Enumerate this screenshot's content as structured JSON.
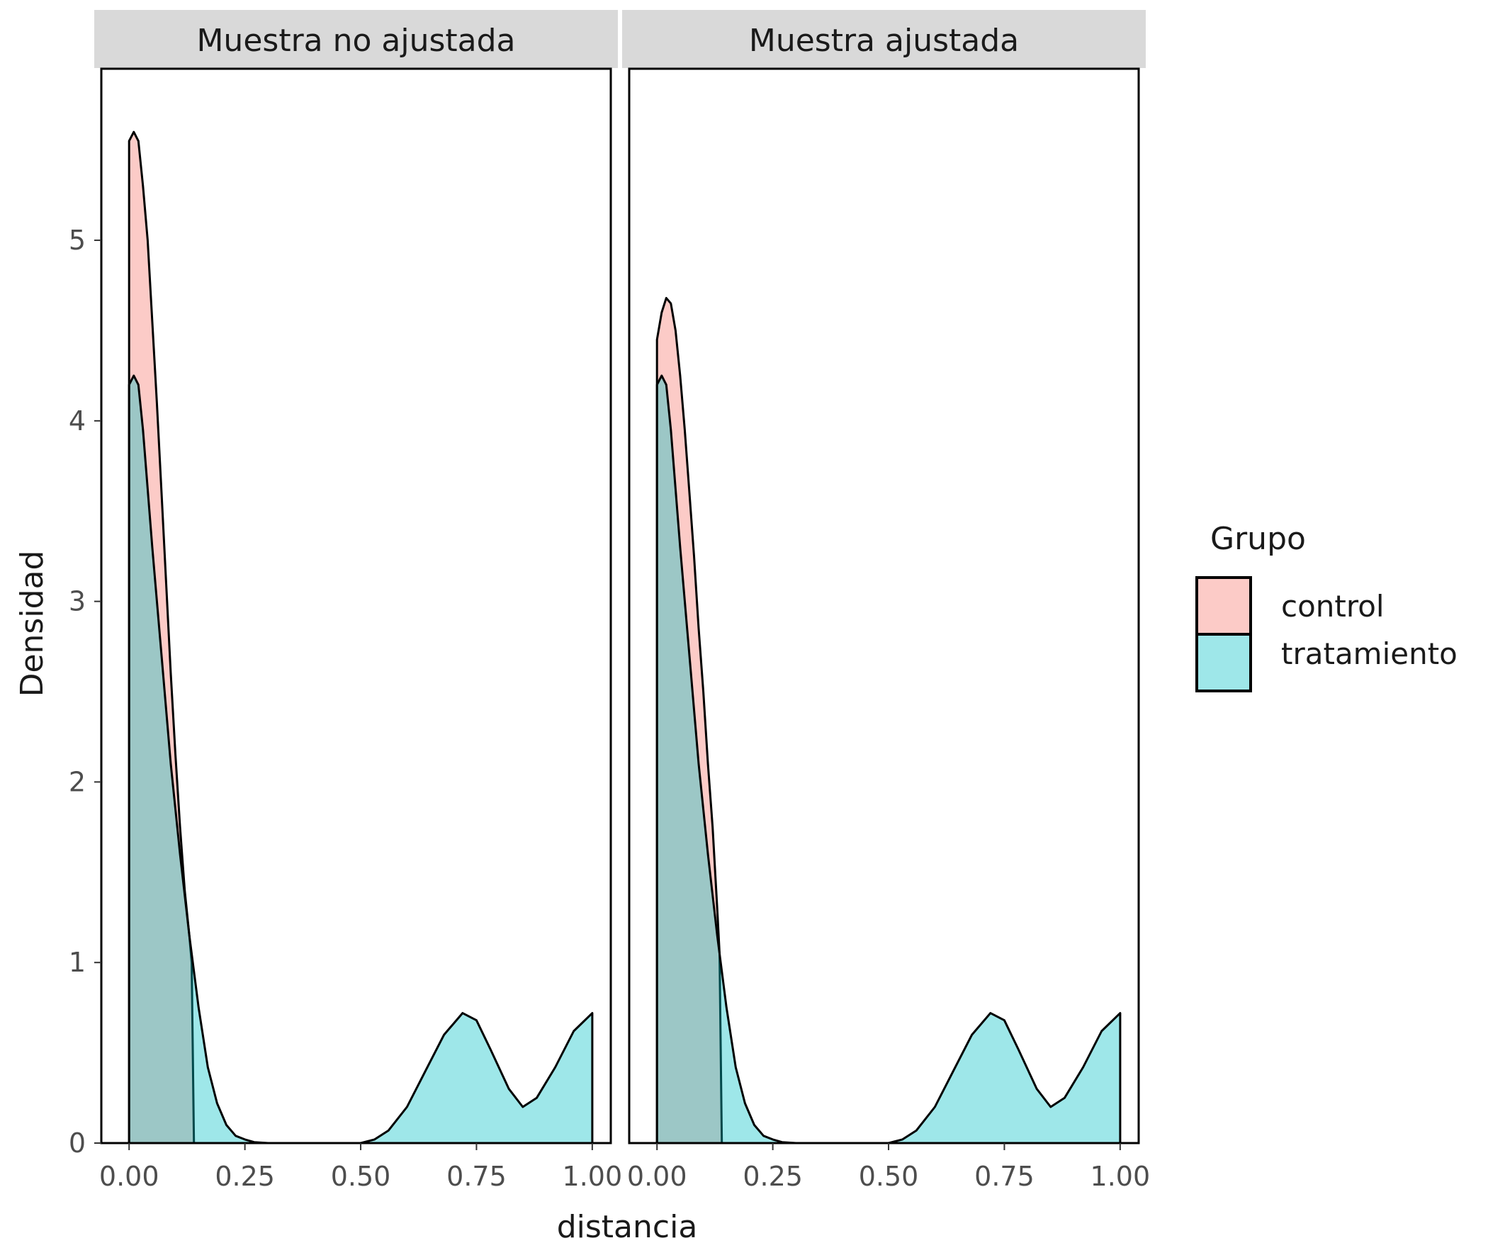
{
  "chart_data": {
    "type": "area",
    "subtype": "density",
    "facets": [
      {
        "title": "Muestra no ajustada",
        "series": [
          {
            "name": "control",
            "x": [
              0.0,
              0.01,
              0.02,
              0.03,
              0.04,
              0.05,
              0.06,
              0.07,
              0.08,
              0.09,
              0.1,
              0.11,
              0.12,
              0.13,
              0.135,
              0.14
            ],
            "y": [
              5.55,
              5.6,
              5.55,
              5.3,
              5.0,
              4.55,
              4.1,
              3.6,
              3.1,
              2.6,
              2.15,
              1.75,
              1.4,
              1.15,
              1.0,
              0.0
            ]
          },
          {
            "name": "tratamiento",
            "x": [
              0.0,
              0.01,
              0.02,
              0.03,
              0.05,
              0.07,
              0.09,
              0.11,
              0.13,
              0.15,
              0.17,
              0.19,
              0.21,
              0.23,
              0.25,
              0.27,
              0.3,
              0.35,
              0.4,
              0.45,
              0.5,
              0.53,
              0.56,
              0.6,
              0.64,
              0.68,
              0.72,
              0.75,
              0.78,
              0.82,
              0.85,
              0.88,
              0.92,
              0.96,
              1.0
            ],
            "y": [
              4.2,
              4.25,
              4.2,
              3.95,
              3.3,
              2.7,
              2.1,
              1.6,
              1.15,
              0.75,
              0.42,
              0.22,
              0.1,
              0.04,
              0.02,
              0.005,
              0.0,
              0.0,
              0.0,
              0.0,
              0.0,
              0.02,
              0.07,
              0.2,
              0.4,
              0.6,
              0.72,
              0.68,
              0.52,
              0.3,
              0.2,
              0.25,
              0.42,
              0.62,
              0.72
            ]
          }
        ]
      },
      {
        "title": "Muestra ajustada",
        "series": [
          {
            "name": "control",
            "x": [
              0.0,
              0.01,
              0.02,
              0.03,
              0.04,
              0.05,
              0.06,
              0.07,
              0.08,
              0.09,
              0.1,
              0.11,
              0.12,
              0.13,
              0.135,
              0.14
            ],
            "y": [
              4.45,
              4.6,
              4.68,
              4.65,
              4.5,
              4.25,
              3.95,
              3.6,
              3.25,
              2.85,
              2.5,
              2.1,
              1.75,
              1.3,
              1.05,
              0.0
            ]
          },
          {
            "name": "tratamiento",
            "x": [
              0.0,
              0.01,
              0.02,
              0.03,
              0.05,
              0.07,
              0.09,
              0.11,
              0.13,
              0.15,
              0.17,
              0.19,
              0.21,
              0.23,
              0.25,
              0.27,
              0.3,
              0.35,
              0.4,
              0.45,
              0.5,
              0.53,
              0.56,
              0.6,
              0.64,
              0.68,
              0.72,
              0.75,
              0.78,
              0.82,
              0.85,
              0.88,
              0.92,
              0.96,
              1.0
            ],
            "y": [
              4.2,
              4.25,
              4.2,
              3.95,
              3.3,
              2.7,
              2.1,
              1.6,
              1.15,
              0.75,
              0.42,
              0.22,
              0.1,
              0.04,
              0.02,
              0.005,
              0.0,
              0.0,
              0.0,
              0.0,
              0.0,
              0.02,
              0.07,
              0.2,
              0.4,
              0.6,
              0.72,
              0.68,
              0.52,
              0.3,
              0.2,
              0.25,
              0.42,
              0.62,
              0.72
            ]
          }
        ]
      }
    ],
    "xlabel": "distancia",
    "ylabel": "Densidad",
    "x_ticks": [
      "0.00",
      "0.25",
      "0.50",
      "0.75",
      "1.00"
    ],
    "x_tick_values": [
      0.0,
      0.25,
      0.5,
      0.75,
      1.0
    ],
    "y_ticks": [
      "0",
      "1",
      "2",
      "3",
      "4",
      "5"
    ],
    "y_tick_values": [
      0,
      1,
      2,
      3,
      4,
      5
    ],
    "xlim": [
      -0.06,
      1.04
    ],
    "ylim": [
      0,
      5.95
    ],
    "grid": false,
    "legend": {
      "title": "Grupo",
      "position": "right",
      "entries": [
        "control",
        "tratamiento"
      ]
    },
    "colors": {
      "control": "#f8766d",
      "tratamiento": "#00bfc4",
      "fill_opacity": 0.38,
      "strip_bg": "#d9d9d9",
      "outline": "#000000"
    }
  }
}
